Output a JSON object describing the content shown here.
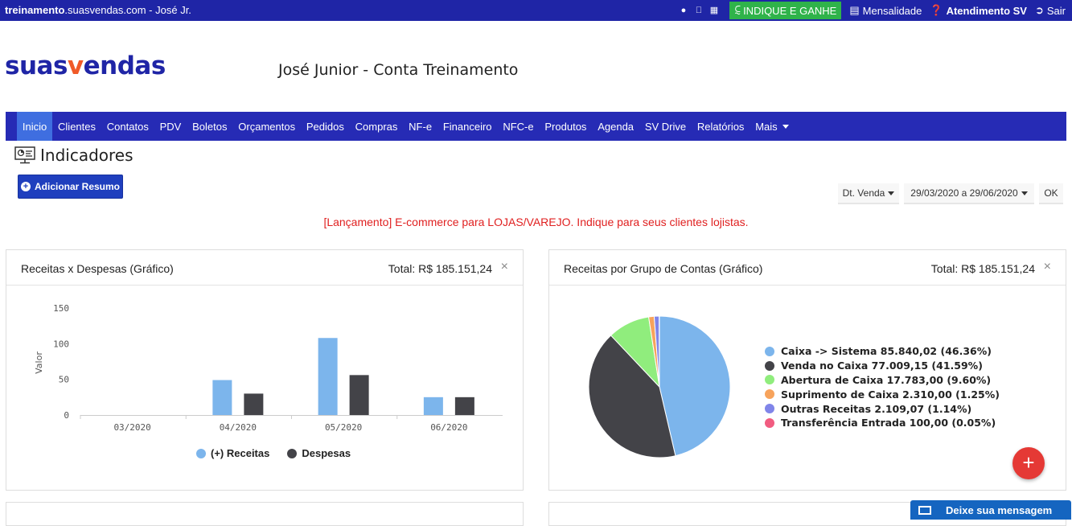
{
  "topbar": {
    "site_bold": "treinamento",
    "site_rest": ".suasvendas.com - José Jr.",
    "indique": "INDIQUE E GANHE",
    "mensalidade": "Mensalidade",
    "atendimento": "Atendimento SV",
    "sair": "Sair",
    "os_icons": [
      "android-icon",
      "apple-icon",
      "windows-icon"
    ]
  },
  "header": {
    "logo_part1": "suas",
    "logo_v": "v",
    "logo_part2": "endas",
    "account": "José Junior - Conta Treinamento"
  },
  "nav": {
    "items": [
      "Inicio",
      "Clientes",
      "Contatos",
      "PDV",
      "Boletos",
      "Orçamentos",
      "Pedidos",
      "Compras",
      "NF-e",
      "Financeiro",
      "NFC-e",
      "Produtos",
      "Agenda",
      "SV Drive",
      "Relatórios",
      "Mais"
    ],
    "active": "Inicio"
  },
  "page": {
    "title": "Indicadores",
    "add_button": "Adicionar Resumo",
    "filter_date_type": "Dt. Venda",
    "filter_range": "29/03/2020 a 29/06/2020",
    "ok": "OK",
    "announcement": "[Lançamento] E-commerce para LOJAS/VAREJO. Indique para seus clientes lojistas."
  },
  "panel_left": {
    "title": "Receitas x Despesas (Gráfico)",
    "total": "Total: R$ 185.151,24",
    "close": "×"
  },
  "panel_right": {
    "title": "Receitas por Grupo de Contas (Gráfico)",
    "total": "Total: R$ 185.151,24",
    "close": "×"
  },
  "chat": {
    "label": "Deixe sua mensagem"
  },
  "fab": "+",
  "colors": {
    "brand": "#1f25a6",
    "nav": "#262bb5",
    "active": "#3f6ee0",
    "green": "#2fb34a",
    "announce": "#e02020"
  },
  "chart_data": [
    {
      "type": "bar",
      "ylabel": "Valor",
      "ylim": [
        0,
        150
      ],
      "yticks": [
        0,
        50,
        100,
        150
      ],
      "categories": [
        "03/2020",
        "04/2020",
        "05/2020",
        "06/2020"
      ],
      "series": [
        {
          "name": "(+) Receitas",
          "color": "#7cb5ec",
          "values": [
            0,
            49,
            108,
            25
          ]
        },
        {
          "name": "Despesas",
          "color": "#434348",
          "values": [
            0,
            30,
            56,
            25
          ]
        }
      ],
      "legend": "bottom"
    },
    {
      "type": "pie",
      "slices": [
        {
          "label": "Caixa -> Sistema 85.840,02 (46.36%)",
          "value": 46.36,
          "color": "#7cb5ec"
        },
        {
          "label": "Venda no Caixa 77.009,15 (41.59%)",
          "value": 41.59,
          "color": "#434348"
        },
        {
          "label": "Abertura de Caixa 17.783,00 (9.60%)",
          "value": 9.6,
          "color": "#90ed7d"
        },
        {
          "label": "Suprimento de Caixa 2.310,00 (1.25%)",
          "value": 1.25,
          "color": "#f7a35c"
        },
        {
          "label": "Outras Receitas 2.109,07 (1.14%)",
          "value": 1.14,
          "color": "#8085e9"
        },
        {
          "label": "Transferência Entrada 100,00 (0.05%)",
          "value": 0.05,
          "color": "#f15c80"
        }
      ],
      "legend": "right"
    }
  ]
}
